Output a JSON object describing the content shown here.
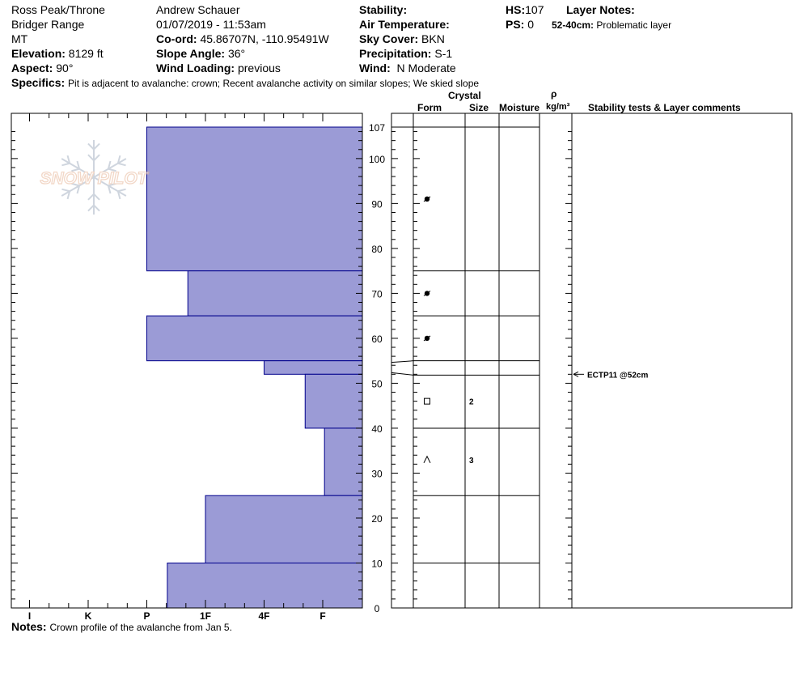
{
  "header": {
    "location": "Ross Peak/Throne",
    "range": "Bridger Range",
    "state": "MT",
    "elevation_label": "Elevation:",
    "elevation_value": "8129 ft",
    "aspect_label": "Aspect:",
    "aspect_value": "90°",
    "observer": "Andrew Schauer",
    "datetime": "01/07/2019 - 11:53am",
    "coord_label": "Co-ord:",
    "coord_value": "45.86707N, -110.95491W",
    "slope_label": "Slope Angle:",
    "slope_value": "36°",
    "wind_loading_label": "Wind Loading:",
    "wind_loading_value": "previous",
    "stability_label": "Stability:",
    "air_temp_label": "Air Temperature:",
    "sky_label": "Sky Cover:",
    "sky_value": "BKN",
    "precip_label": "Precipitation:",
    "precip_value": "S-1",
    "wind_label": "Wind:",
    "wind_value": "N Moderate",
    "hs_label": "HS:",
    "hs_value": "107",
    "ps_label": "PS:",
    "ps_value": "0",
    "layer_notes_label": "Layer Notes:",
    "layer_note_range": "52-40cm:",
    "layer_note_text": "Problematic layer",
    "specifics_label": "Specifics:",
    "specifics_value": "Pit is adjacent to avalanche: crown; Recent avalanche activity on similar slopes; We skied slope"
  },
  "columns": {
    "crystal": "Crystal",
    "form": "Form",
    "size": "Size",
    "moisture": "Moisture",
    "rho": "ρ",
    "density_unit": "kg/m³",
    "stability_comments": "Stability tests & Layer comments"
  },
  "logo_text": "SNOW PILOT",
  "notes_label": "Notes:",
  "notes_value": "Crown profile of the avalanche from Jan 5.",
  "colors": {
    "hardness_fill": "#9b9bd6",
    "hardness_stroke": "#00008b"
  },
  "chart_data": {
    "type": "bar",
    "orientation": "horizontal",
    "title": "",
    "xlabel": "",
    "ylabel": "",
    "x_categories": [
      "I",
      "K",
      "P",
      "1F",
      "4F",
      "F"
    ],
    "y_ticks": [
      0,
      10,
      20,
      30,
      40,
      50,
      60,
      70,
      80,
      90,
      100,
      107
    ],
    "ylim": [
      0,
      107
    ],
    "layers": [
      {
        "top": 107,
        "bottom": 75,
        "hardness": "P"
      },
      {
        "top": 75,
        "bottom": 65,
        "hardness": "P+/1F-"
      },
      {
        "top": 65,
        "bottom": 55,
        "hardness": "P"
      },
      {
        "top": 55,
        "bottom": 52,
        "hardness": "4F"
      },
      {
        "top": 52,
        "bottom": 40,
        "hardness": "4F-/F+"
      },
      {
        "top": 40,
        "bottom": 25,
        "hardness": "F+"
      },
      {
        "top": 25,
        "bottom": 10,
        "hardness": "1F"
      },
      {
        "top": 10,
        "bottom": 0,
        "hardness": "P-"
      }
    ],
    "hardness_index": {
      "I": 0,
      "K": 1,
      "P": 2,
      "P+/1F-": 2.7,
      "P-": 2.35,
      "1F": 3,
      "4F": 4,
      "4F-/F+": 4.7,
      "F+": 5.03
    },
    "crystals": [
      {
        "depth": 91,
        "form": "irregular-grain"
      },
      {
        "depth": 70,
        "form": "irregular-grain"
      },
      {
        "depth": 60,
        "form": "irregular-grain"
      },
      {
        "depth": 46,
        "form": "faceted",
        "size": "2"
      },
      {
        "depth": 33,
        "form": "depth-hoar",
        "size": "3"
      }
    ],
    "stability_tests": [
      {
        "depth": 52,
        "label": "ECTP11 @52cm"
      }
    ]
  }
}
